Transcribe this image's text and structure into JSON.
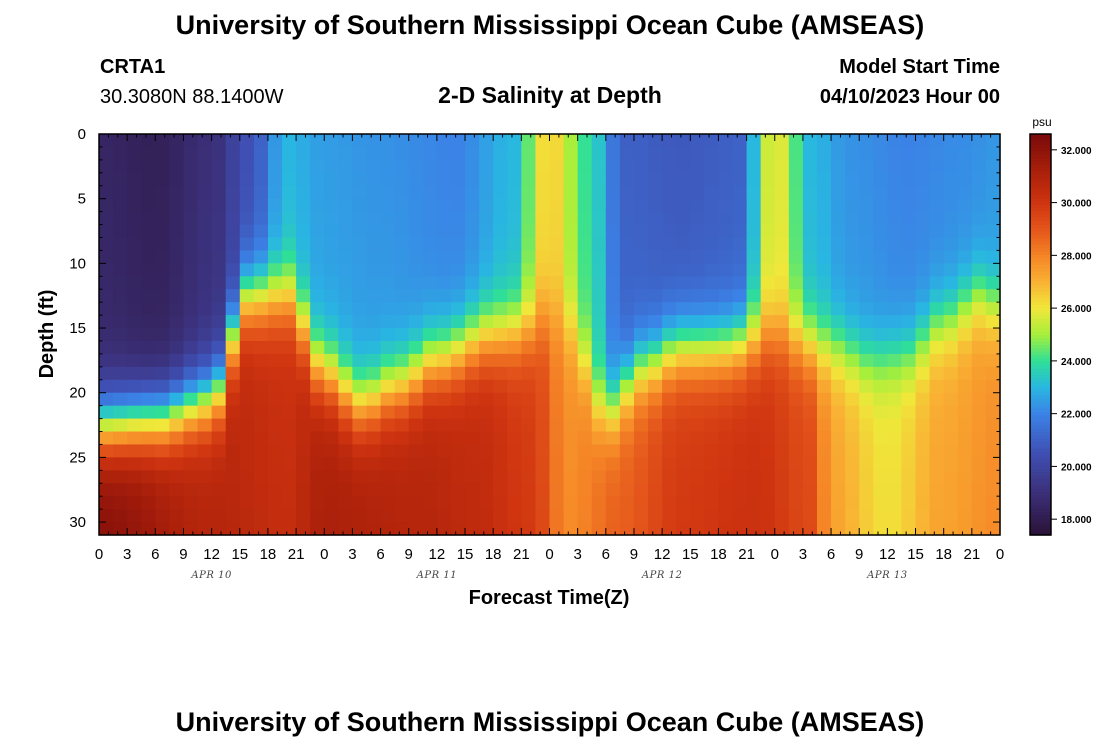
{
  "header": {
    "title": "University of Southern Mississippi Ocean Cube (AMSEAS)",
    "station_id": "CRTA1",
    "station_coords": "30.3080N  88.1400W",
    "plot_title": "2-D Salinity at Depth",
    "model_start_label": "Model Start Time",
    "model_start_value": "04/10/2023 Hour 00"
  },
  "footer": {
    "title": "University of Southern Mississippi Ocean Cube (AMSEAS)"
  },
  "chart_data": {
    "type": "heatmap",
    "title": "2-D Salinity at Depth",
    "xlabel": "Forecast Time(Z)",
    "ylabel": "Depth (ft)",
    "xlim_hours": [
      0,
      96
    ],
    "ylim": [
      0,
      31
    ],
    "y_inverted": true,
    "x_tick_hours": [
      0,
      3,
      6,
      9,
      12,
      15,
      18,
      21,
      24,
      27,
      30,
      33,
      36,
      39,
      42,
      45,
      48,
      51,
      54,
      57,
      60,
      63,
      66,
      69,
      72,
      75,
      78,
      81,
      84,
      87,
      90,
      93,
      96
    ],
    "x_tick_labels": [
      "0",
      "3",
      "6",
      "9",
      "12",
      "15",
      "18",
      "21",
      "0",
      "3",
      "6",
      "9",
      "12",
      "15",
      "18",
      "21",
      "0",
      "3",
      "6",
      "9",
      "12",
      "15",
      "18",
      "21",
      "0",
      "3",
      "6",
      "9",
      "12",
      "15",
      "18",
      "21",
      "0"
    ],
    "day_labels": [
      {
        "label": "APR 10",
        "hour": 12
      },
      {
        "label": "APR 11",
        "hour": 36
      },
      {
        "label": "APR 12",
        "hour": 60
      },
      {
        "label": "APR 13",
        "hour": 84
      }
    ],
    "y_ticks": [
      0,
      5,
      10,
      15,
      20,
      25,
      30
    ],
    "colorbar": {
      "unit": "psu",
      "min": 17.4,
      "max": 32.6,
      "ticks": [
        18,
        20,
        22,
        24,
        26,
        28,
        30,
        32
      ],
      "tick_labels": [
        "18.000",
        "20.000",
        "22.000",
        "24.000",
        "26.000",
        "28.000",
        "30.000",
        "32.000"
      ]
    },
    "colormap": [
      {
        "value": 17.4,
        "color": "#2a1136"
      },
      {
        "value": 19.0,
        "color": "#3b2f78"
      },
      {
        "value": 20.5,
        "color": "#3f4fb3"
      },
      {
        "value": 22.0,
        "color": "#3b82e6"
      },
      {
        "value": 23.0,
        "color": "#29b6e2"
      },
      {
        "value": 24.0,
        "color": "#2fdf98"
      },
      {
        "value": 25.0,
        "color": "#a6ef3b"
      },
      {
        "value": 26.0,
        "color": "#f0e73a"
      },
      {
        "value": 27.0,
        "color": "#f9b234"
      },
      {
        "value": 28.0,
        "color": "#f58426"
      },
      {
        "value": 29.0,
        "color": "#e4561b"
      },
      {
        "value": 30.0,
        "color": "#cf3410"
      },
      {
        "value": 31.0,
        "color": "#b0230b"
      },
      {
        "value": 32.6,
        "color": "#7a0a0a"
      }
    ],
    "field": {
      "description": "Salinity (psu) by forecast hour and depth (ft); surface layer values, halocline depth and bottom layer values",
      "surface_anchor_hours": [
        0,
        6,
        12,
        16,
        20,
        24,
        30,
        38,
        44,
        48,
        52,
        56,
        62,
        68,
        72,
        76,
        80,
        86,
        92,
        96
      ],
      "surface_salinity": [
        18.5,
        18.2,
        19.0,
        20.5,
        23.0,
        22.5,
        22.3,
        22.0,
        23.0,
        26.5,
        24.0,
        21.0,
        20.8,
        21.0,
        26.0,
        23.0,
        22.3,
        22.0,
        22.2,
        22.4
      ],
      "halocline_anchor_hours": [
        0,
        6,
        12,
        16,
        20,
        24,
        28,
        32,
        36,
        42,
        46,
        48,
        50,
        54,
        58,
        62,
        66,
        72,
        78,
        82,
        86,
        90,
        94,
        96
      ],
      "halocline_depth_ft": [
        22.5,
        22.0,
        20.5,
        12.5,
        12.5,
        18.5,
        21.0,
        19.5,
        17.5,
        15.5,
        15.0,
        14.0,
        15.0,
        21.5,
        18.0,
        16.5,
        16.5,
        15.5,
        16.5,
        17.5,
        17.0,
        14.5,
        12.5,
        13.5
      ],
      "bottom_anchor_hours": [
        0,
        12,
        20,
        24,
        34,
        40,
        46,
        50,
        56,
        62,
        70,
        76,
        78,
        84,
        90,
        96
      ],
      "bottom_salinity": [
        31.8,
        30.5,
        30.0,
        30.8,
        30.5,
        30.2,
        29.5,
        27.5,
        28.5,
        29.5,
        29.8,
        29.0,
        27.0,
        25.8,
        27.0,
        27.5
      ]
    }
  }
}
